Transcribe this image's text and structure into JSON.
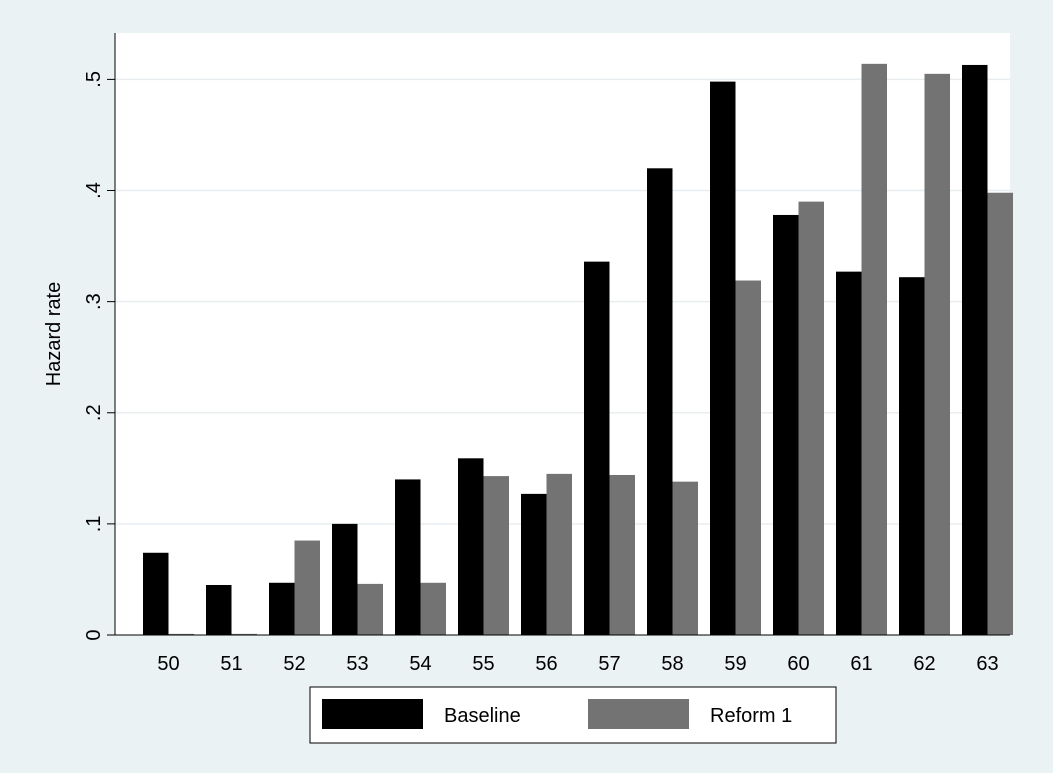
{
  "chart_data": {
    "type": "bar",
    "title": "",
    "xlabel": "",
    "ylabel": "Hazard rate",
    "categories": [
      "50",
      "51",
      "52",
      "53",
      "54",
      "55",
      "56",
      "57",
      "58",
      "59",
      "60",
      "61",
      "62",
      "63"
    ],
    "series": [
      {
        "name": "Baseline",
        "color": "#000000",
        "values": [
          0.074,
          0.045,
          0.047,
          0.1,
          0.14,
          0.159,
          0.127,
          0.336,
          0.42,
          0.498,
          0.378,
          0.327,
          0.322,
          0.513
        ]
      },
      {
        "name": "Reform 1",
        "color": "#737373",
        "values": [
          0.001,
          0.001,
          0.085,
          0.046,
          0.047,
          0.143,
          0.145,
          0.144,
          0.138,
          0.319,
          0.39,
          0.514,
          0.505,
          0.398
        ]
      }
    ],
    "ylim": [
      0,
      0.535
    ],
    "yticks": [
      0,
      0.1,
      0.2,
      0.3,
      0.4,
      0.5
    ],
    "ytick_labels": [
      "0",
      ".1",
      ".2",
      ".3",
      ".4",
      ".5"
    ],
    "grid": true,
    "legend_position": "bottom"
  }
}
